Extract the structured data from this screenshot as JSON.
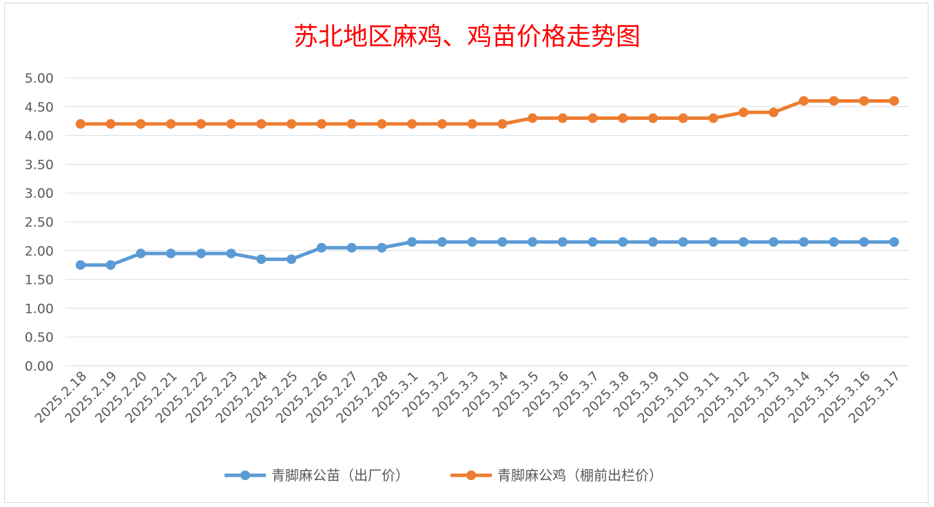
{
  "chart_data": {
    "type": "line",
    "title": "苏北地区麻鸡、鸡苗价格走势图",
    "xlabel": "",
    "ylabel": "",
    "ylim": [
      0,
      5
    ],
    "yticks": [
      "0.00",
      "0.50",
      "1.00",
      "1.50",
      "2.00",
      "2.50",
      "3.00",
      "3.50",
      "4.00",
      "4.50",
      "5.00"
    ],
    "grid": true,
    "legend_position": "bottom",
    "categories": [
      "2025.2.18",
      "2025.2.19",
      "2025.2.20",
      "2025.2.21",
      "2025.2.22",
      "2025.2.23",
      "2025.2.24",
      "2025.2.25",
      "2025.2.26",
      "2025.2.27",
      "2025.2.28",
      "2025.3.1",
      "2025.3.2",
      "2025.3.3",
      "2025.3.4",
      "2025.3.5",
      "2025.3.6",
      "2025.3.7",
      "2025.3.8",
      "2025.3.9",
      "2025.3.10",
      "2025.3.11",
      "2025.3.12",
      "2025.3.13",
      "2025.3.14",
      "2025.3.15",
      "2025.3.16",
      "2025.3.17"
    ],
    "series": [
      {
        "name": "青脚麻公苗（出厂价）",
        "color": "#5b9bd5",
        "values": [
          1.75,
          1.75,
          1.95,
          1.95,
          1.95,
          1.95,
          1.85,
          1.85,
          2.05,
          2.05,
          2.05,
          2.15,
          2.15,
          2.15,
          2.15,
          2.15,
          2.15,
          2.15,
          2.15,
          2.15,
          2.15,
          2.15,
          2.15,
          2.15,
          2.15,
          2.15,
          2.15,
          2.15
        ]
      },
      {
        "name": "青脚麻公鸡（棚前出栏价）",
        "color": "#ed7d31",
        "values": [
          4.2,
          4.2,
          4.2,
          4.2,
          4.2,
          4.2,
          4.2,
          4.2,
          4.2,
          4.2,
          4.2,
          4.2,
          4.2,
          4.2,
          4.2,
          4.3,
          4.3,
          4.3,
          4.3,
          4.3,
          4.3,
          4.3,
          4.4,
          4.4,
          4.6,
          4.6,
          4.6,
          4.6
        ]
      }
    ]
  }
}
